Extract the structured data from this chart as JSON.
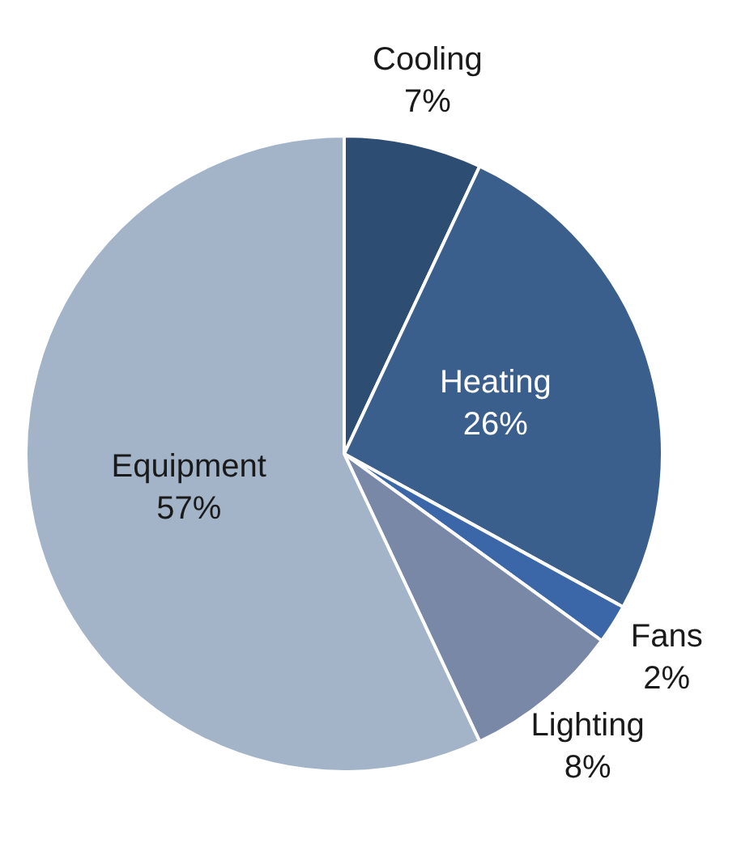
{
  "chart_data": {
    "type": "pie",
    "categories": [
      "Cooling",
      "Heating",
      "Fans",
      "Lighting",
      "Equipment"
    ],
    "values": [
      7,
      26,
      2,
      8,
      57
    ],
    "colors": [
      "#2e4d73",
      "#3a5f8c",
      "#3b67a8",
      "#7a88a8",
      "#a3b4c9"
    ],
    "value_labels": [
      "7%",
      "26%",
      "2%",
      "8%",
      "57%"
    ],
    "legend": false
  }
}
